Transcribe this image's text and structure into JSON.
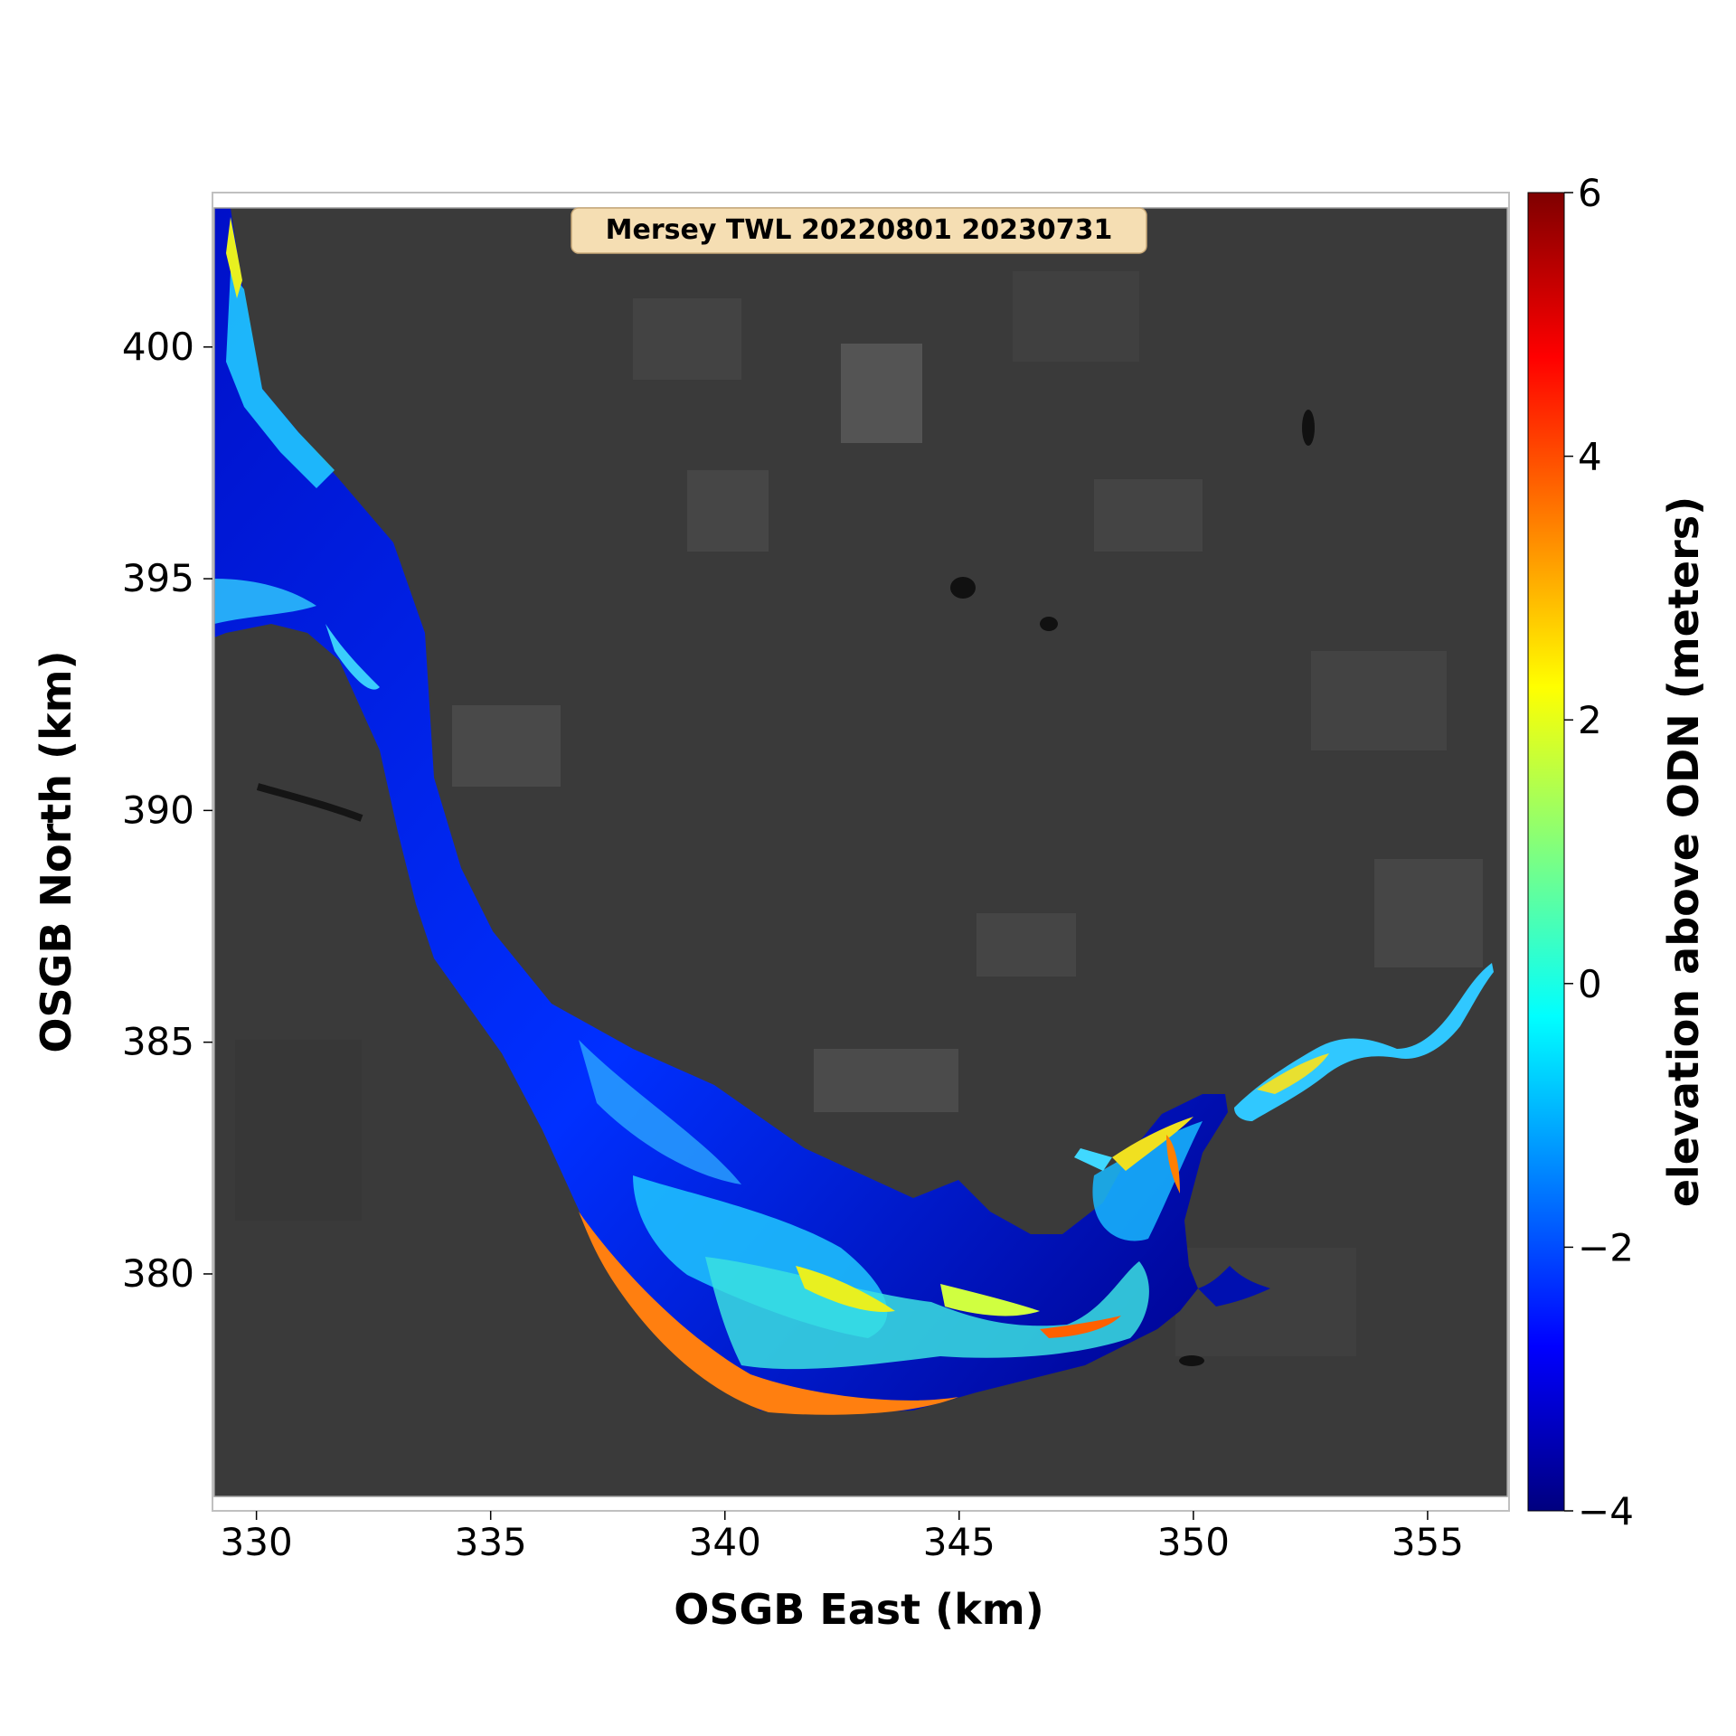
{
  "title": "Mersey TWL 20220801 20230731",
  "axes": {
    "xlabel": "OSGB East (km)",
    "ylabel": "OSGB North (km)",
    "xlim": [
      329.1,
      356.7
    ],
    "ylim": [
      375.2,
      403.0
    ],
    "xticks": [
      330,
      335,
      340,
      345,
      350,
      355
    ],
    "yticks": [
      380,
      385,
      390,
      395,
      400
    ]
  },
  "colorbar": {
    "label": "elevation above ODN (meters)",
    "range": [
      -4,
      6
    ],
    "ticks": [
      6,
      4,
      2,
      0,
      -2,
      -4
    ],
    "tick_labels": [
      "6",
      "4",
      "2",
      "0",
      "−2",
      "−4"
    ],
    "colormap": "jet",
    "colors": [
      "#00007f",
      "#0000ff",
      "#007fff",
      "#00ffff",
      "#7fff7f",
      "#ffff00",
      "#ff7f00",
      "#ff0000",
      "#7f0000"
    ]
  },
  "background": {
    "type": "grayscale satellite imagery",
    "color": "#3a3a3a"
  },
  "colors": {
    "title_box_fill": "#f5deb3",
    "title_box_edge": "#c8a878"
  }
}
